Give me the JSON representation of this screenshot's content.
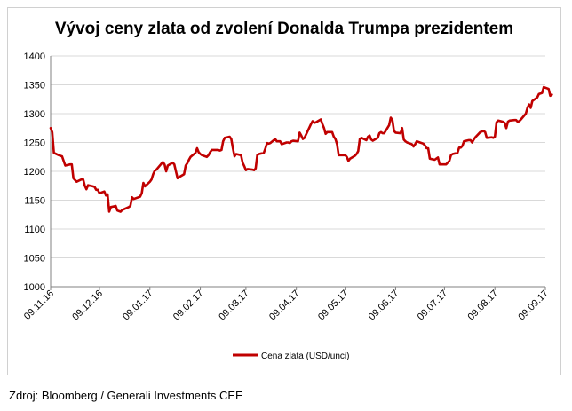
{
  "chart_data": {
    "type": "line",
    "title": "Vývoj ceny zlata od zvolení Donalda Trumpa prezidentem",
    "xlabel": "",
    "ylabel": "",
    "ylim": [
      1000,
      1400
    ],
    "yticks": [
      1000,
      1050,
      1100,
      1150,
      1200,
      1250,
      1300,
      1350,
      1400
    ],
    "xticks": [
      "09.11.16",
      "09.12.16",
      "09.01.17",
      "09.02.17",
      "09.03.17",
      "09.04.17",
      "09.05.17",
      "09.06.17",
      "09.07.17",
      "09.08.17",
      "09.09.17"
    ],
    "grid": "horizontal",
    "legend": "bottom-center",
    "series": [
      {
        "name": "Cena zlata (USD/unci)",
        "color": "#c00000",
        "points": [
          [
            "09.11.16",
            1275
          ],
          [
            "10.11.16",
            1268
          ],
          [
            "11.11.16",
            1232
          ],
          [
            "14.11.16",
            1228
          ],
          [
            "16.11.16",
            1226
          ],
          [
            "18.11.16",
            1210
          ],
          [
            "21.11.16",
            1212
          ],
          [
            "22.11.16",
            1212
          ],
          [
            "23.11.16",
            1188
          ],
          [
            "25.11.16",
            1182
          ],
          [
            "28.11.16",
            1186
          ],
          [
            "29.11.16",
            1186
          ],
          [
            "30.11.16",
            1175
          ],
          [
            "01.12.16",
            1169
          ],
          [
            "02.12.16",
            1176
          ],
          [
            "05.12.16",
            1174
          ],
          [
            "06.12.16",
            1173
          ],
          [
            "07.12.16",
            1168
          ],
          [
            "08.12.16",
            1168
          ],
          [
            "09.12.16",
            1162
          ],
          [
            "12.12.16",
            1165
          ],
          [
            "13.12.16",
            1158
          ],
          [
            "14.12.16",
            1160
          ],
          [
            "15.12.16",
            1130
          ],
          [
            "16.12.16",
            1138
          ],
          [
            "19.12.16",
            1140
          ],
          [
            "20.12.16",
            1132
          ],
          [
            "21.12.16",
            1131
          ],
          [
            "22.12.16",
            1130
          ],
          [
            "23.12.16",
            1133
          ],
          [
            "27.12.16",
            1138
          ],
          [
            "28.12.16",
            1140
          ],
          [
            "29.12.16",
            1155
          ],
          [
            "30.12.16",
            1152
          ],
          [
            "03.01.17",
            1156
          ],
          [
            "04.01.17",
            1162
          ],
          [
            "05.01.17",
            1180
          ],
          [
            "06.01.17",
            1174
          ],
          [
            "09.01.17",
            1182
          ],
          [
            "10.01.17",
            1186
          ],
          [
            "11.01.17",
            1195
          ],
          [
            "12.01.17",
            1201
          ],
          [
            "13.01.17",
            1203
          ],
          [
            "16.01.17",
            1213
          ],
          [
            "17.01.17",
            1216
          ],
          [
            "18.01.17",
            1212
          ],
          [
            "19.01.17",
            1200
          ],
          [
            "20.01.17",
            1210
          ],
          [
            "23.01.17",
            1215
          ],
          [
            "24.01.17",
            1212
          ],
          [
            "25.01.17",
            1200
          ],
          [
            "26.01.17",
            1188
          ],
          [
            "27.01.17",
            1190
          ],
          [
            "30.01.17",
            1195
          ],
          [
            "31.01.17",
            1210
          ],
          [
            "01.02.17",
            1214
          ],
          [
            "02.02.17",
            1220
          ],
          [
            "03.02.17",
            1225
          ],
          [
            "06.02.17",
            1232
          ],
          [
            "07.02.17",
            1240
          ],
          [
            "08.02.17",
            1233
          ],
          [
            "09.02.17",
            1230
          ],
          [
            "10.02.17",
            1228
          ],
          [
            "13.02.17",
            1225
          ],
          [
            "14.02.17",
            1228
          ],
          [
            "15.02.17",
            1233
          ],
          [
            "16.02.17",
            1237
          ],
          [
            "17.02.17",
            1237
          ],
          [
            "20.02.17",
            1237
          ],
          [
            "21.02.17",
            1236
          ],
          [
            "22.02.17",
            1237
          ],
          [
            "23.02.17",
            1252
          ],
          [
            "24.02.17",
            1258
          ],
          [
            "27.02.17",
            1260
          ],
          [
            "28.02.17",
            1256
          ],
          [
            "01.03.17",
            1240
          ],
          [
            "02.03.17",
            1226
          ],
          [
            "03.03.17",
            1230
          ],
          [
            "06.03.17",
            1228
          ],
          [
            "07.03.17",
            1215
          ],
          [
            "08.03.17",
            1209
          ],
          [
            "09.03.17",
            1202
          ],
          [
            "10.03.17",
            1204
          ],
          [
            "13.03.17",
            1203
          ],
          [
            "14.03.17",
            1202
          ],
          [
            "15.03.17",
            1205
          ],
          [
            "16.03.17",
            1228
          ],
          [
            "17.03.17",
            1230
          ],
          [
            "20.03.17",
            1232
          ],
          [
            "21.03.17",
            1240
          ],
          [
            "22.03.17",
            1249
          ],
          [
            "23.03.17",
            1248
          ],
          [
            "24.03.17",
            1249
          ],
          [
            "27.03.17",
            1256
          ],
          [
            "28.03.17",
            1252
          ],
          [
            "29.03.17",
            1252
          ],
          [
            "30.03.17",
            1252
          ],
          [
            "31.03.17",
            1247
          ],
          [
            "03.04.17",
            1250
          ],
          [
            "04.04.17",
            1250
          ],
          [
            "05.04.17",
            1249
          ],
          [
            "06.04.17",
            1252
          ],
          [
            "07.04.17",
            1253
          ],
          [
            "10.04.17",
            1252
          ],
          [
            "11.04.17",
            1267
          ],
          [
            "12.04.17",
            1262
          ],
          [
            "13.04.17",
            1256
          ],
          [
            "14.04.17",
            1258
          ],
          [
            "18.04.17",
            1282
          ],
          [
            "19.04.17",
            1287
          ],
          [
            "20.04.17",
            1284
          ],
          [
            "21.04.17",
            1285
          ],
          [
            "24.04.17",
            1290
          ],
          [
            "25.04.17",
            1282
          ],
          [
            "26.04.17",
            1275
          ],
          [
            "27.04.17",
            1265
          ],
          [
            "28.04.17",
            1268
          ],
          [
            "01.05.17",
            1268
          ],
          [
            "02.05.17",
            1260
          ],
          [
            "03.05.17",
            1256
          ],
          [
            "04.05.17",
            1247
          ],
          [
            "05.05.17",
            1228
          ],
          [
            "08.05.17",
            1228
          ],
          [
            "09.05.17",
            1228
          ],
          [
            "10.05.17",
            1225
          ],
          [
            "11.05.17",
            1218
          ],
          [
            "12.05.17",
            1222
          ],
          [
            "15.05.17",
            1227
          ],
          [
            "16.05.17",
            1230
          ],
          [
            "17.05.17",
            1235
          ],
          [
            "18.05.17",
            1256
          ],
          [
            "19.05.17",
            1258
          ],
          [
            "22.05.17",
            1254
          ],
          [
            "23.05.17",
            1260
          ],
          [
            "24.05.17",
            1262
          ],
          [
            "25.05.17",
            1255
          ],
          [
            "26.05.17",
            1253
          ],
          [
            "29.05.17",
            1258
          ],
          [
            "30.05.17",
            1266
          ],
          [
            "31.05.17",
            1268
          ],
          [
            "01.06.17",
            1266
          ],
          [
            "02.06.17",
            1266
          ],
          [
            "05.06.17",
            1280
          ],
          [
            "06.06.17",
            1293
          ],
          [
            "07.06.17",
            1289
          ],
          [
            "08.06.17",
            1270
          ],
          [
            "09.06.17",
            1267
          ],
          [
            "12.06.17",
            1266
          ],
          [
            "13.06.17",
            1275
          ],
          [
            "14.06.17",
            1255
          ],
          [
            "15.06.17",
            1252
          ],
          [
            "16.06.17",
            1250
          ],
          [
            "19.06.17",
            1247
          ],
          [
            "20.06.17",
            1243
          ],
          [
            "21.06.17",
            1247
          ],
          [
            "22.06.17",
            1252
          ],
          [
            "23.06.17",
            1251
          ],
          [
            "26.06.17",
            1248
          ],
          [
            "27.06.17",
            1245
          ],
          [
            "28.06.17",
            1240
          ],
          [
            "29.06.17",
            1240
          ],
          [
            "30.06.17",
            1222
          ],
          [
            "03.07.17",
            1220
          ],
          [
            "04.07.17",
            1222
          ],
          [
            "05.07.17",
            1224
          ],
          [
            "06.07.17",
            1212
          ],
          [
            "07.07.17",
            1212
          ],
          [
            "10.07.17",
            1212
          ],
          [
            "11.07.17",
            1215
          ],
          [
            "12.07.17",
            1218
          ],
          [
            "13.07.17",
            1228
          ],
          [
            "14.07.17",
            1230
          ],
          [
            "17.07.17",
            1232
          ],
          [
            "18.07.17",
            1241
          ],
          [
            "19.07.17",
            1241
          ],
          [
            "20.07.17",
            1244
          ],
          [
            "21.07.17",
            1252
          ],
          [
            "24.07.17",
            1254
          ],
          [
            "25.07.17",
            1254
          ],
          [
            "26.07.17",
            1250
          ],
          [
            "27.07.17",
            1255
          ],
          [
            "28.07.17",
            1259
          ],
          [
            "31.07.17",
            1268
          ],
          [
            "01.08.17",
            1269
          ],
          [
            "02.08.17",
            1270
          ],
          [
            "03.08.17",
            1268
          ],
          [
            "04.08.17",
            1258
          ],
          [
            "07.08.17",
            1259
          ],
          [
            "08.08.17",
            1258
          ],
          [
            "09.08.17",
            1260
          ],
          [
            "10.08.17",
            1285
          ],
          [
            "11.08.17",
            1288
          ],
          [
            "14.08.17",
            1286
          ],
          [
            "15.08.17",
            1284
          ],
          [
            "16.08.17",
            1275
          ],
          [
            "17.08.17",
            1286
          ],
          [
            "18.08.17",
            1288
          ],
          [
            "21.08.17",
            1289
          ],
          [
            "22.08.17",
            1289
          ],
          [
            "23.08.17",
            1286
          ],
          [
            "24.08.17",
            1287
          ],
          [
            "25.08.17",
            1290
          ],
          [
            "28.08.17",
            1300
          ],
          [
            "29.08.17",
            1310
          ],
          [
            "30.08.17",
            1316
          ],
          [
            "31.08.17",
            1310
          ],
          [
            "01.09.17",
            1322
          ],
          [
            "04.09.17",
            1328
          ],
          [
            "05.09.17",
            1334
          ],
          [
            "06.09.17",
            1335
          ],
          [
            "07.09.17",
            1336
          ],
          [
            "08.09.17",
            1346
          ],
          [
            "11.09.17",
            1343
          ],
          [
            "12.09.17",
            1331
          ],
          [
            "13.09.17",
            1333
          ]
        ]
      }
    ]
  },
  "source": "Zdroj: Bloomberg / Generali Investments CEE"
}
